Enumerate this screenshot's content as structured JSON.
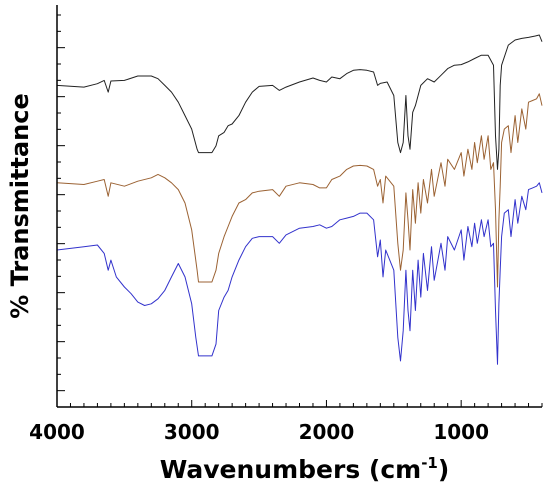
{
  "chart_data": {
    "type": "line",
    "title": "",
    "xlabel": "Wavenumbers (cm",
    "xlabel_sup": "-1",
    "xlabel_close": ")",
    "ylabel": "% Transmittance",
    "xlim": [
      4000,
      400
    ],
    "x_reversed": true,
    "x_ticks": [
      4000,
      3000,
      2000,
      1000
    ],
    "x_tick_labels": [
      "4000",
      "3000",
      "2000",
      "1000"
    ],
    "ylim": [
      0,
      100
    ],
    "y_tick_count": 24,
    "y_tick_labels_shown": false,
    "grid": false,
    "legend": "none",
    "series": [
      {
        "color": "#222222",
        "points": [
          [
            4000,
            85
          ],
          [
            3800,
            84.5
          ],
          [
            3700,
            85.5
          ],
          [
            3650,
            86.5
          ],
          [
            3620,
            83
          ],
          [
            3600,
            86.3
          ],
          [
            3500,
            86.5
          ],
          [
            3400,
            87.8
          ],
          [
            3300,
            87.8
          ],
          [
            3250,
            87
          ],
          [
            3200,
            85
          ],
          [
            3150,
            83
          ],
          [
            3100,
            80
          ],
          [
            3050,
            76
          ],
          [
            3000,
            72
          ],
          [
            2960,
            66
          ],
          [
            2950,
            65
          ],
          [
            2900,
            65
          ],
          [
            2850,
            65
          ],
          [
            2820,
            67
          ],
          [
            2800,
            70
          ],
          [
            2760,
            71
          ],
          [
            2730,
            73
          ],
          [
            2700,
            73.5
          ],
          [
            2650,
            76
          ],
          [
            2600,
            80
          ],
          [
            2550,
            83
          ],
          [
            2500,
            84.7
          ],
          [
            2400,
            85
          ],
          [
            2350,
            83.5
          ],
          [
            2300,
            84.5
          ],
          [
            2200,
            86
          ],
          [
            2100,
            87.2
          ],
          [
            2050,
            86.5
          ],
          [
            2000,
            86
          ],
          [
            1960,
            87.5
          ],
          [
            1900,
            87
          ],
          [
            1850,
            88.5
          ],
          [
            1800,
            89.5
          ],
          [
            1750,
            89.7
          ],
          [
            1700,
            89.5
          ],
          [
            1650,
            89
          ],
          [
            1620,
            85
          ],
          [
            1600,
            85.6
          ],
          [
            1550,
            86
          ],
          [
            1500,
            82
          ],
          [
            1470,
            68
          ],
          [
            1450,
            65
          ],
          [
            1430,
            68
          ],
          [
            1410,
            82
          ],
          [
            1395,
            70
          ],
          [
            1380,
            66
          ],
          [
            1360,
            77
          ],
          [
            1340,
            79
          ],
          [
            1300,
            85
          ],
          [
            1250,
            87
          ],
          [
            1200,
            86
          ],
          [
            1150,
            88
          ],
          [
            1100,
            90
          ],
          [
            1050,
            91
          ],
          [
            1000,
            91.2
          ],
          [
            950,
            92
          ],
          [
            900,
            93
          ],
          [
            850,
            94
          ],
          [
            800,
            94
          ],
          [
            760,
            91
          ],
          [
            745,
            70
          ],
          [
            730,
            60
          ],
          [
            720,
            66
          ],
          [
            710,
            85
          ],
          [
            700,
            91
          ],
          [
            650,
            97
          ],
          [
            600,
            98.5
          ],
          [
            550,
            99
          ],
          [
            500,
            99.3
          ],
          [
            450,
            99.7
          ],
          [
            420,
            100
          ],
          [
            400,
            98
          ]
        ]
      },
      {
        "color": "#9b6233",
        "points": [
          [
            4000,
            56
          ],
          [
            3800,
            55.5
          ],
          [
            3700,
            56.5
          ],
          [
            3650,
            57
          ],
          [
            3620,
            52
          ],
          [
            3600,
            56
          ],
          [
            3500,
            55
          ],
          [
            3400,
            56.5
          ],
          [
            3300,
            57.5
          ],
          [
            3250,
            58.5
          ],
          [
            3200,
            57.5
          ],
          [
            3150,
            56
          ],
          [
            3100,
            54
          ],
          [
            3050,
            50
          ],
          [
            3000,
            42
          ],
          [
            2960,
            30
          ],
          [
            2950,
            26.5
          ],
          [
            2900,
            26.5
          ],
          [
            2850,
            26.5
          ],
          [
            2820,
            30
          ],
          [
            2800,
            35
          ],
          [
            2760,
            40
          ],
          [
            2730,
            43
          ],
          [
            2700,
            46
          ],
          [
            2650,
            50
          ],
          [
            2600,
            51
          ],
          [
            2550,
            53
          ],
          [
            2500,
            53.5
          ],
          [
            2400,
            54
          ],
          [
            2350,
            52
          ],
          [
            2300,
            55
          ],
          [
            2200,
            56
          ],
          [
            2100,
            55.5
          ],
          [
            2050,
            54.5
          ],
          [
            2000,
            54.5
          ],
          [
            1960,
            57
          ],
          [
            1900,
            58
          ],
          [
            1850,
            60
          ],
          [
            1800,
            61
          ],
          [
            1750,
            61.2
          ],
          [
            1700,
            61
          ],
          [
            1650,
            60
          ],
          [
            1620,
            55
          ],
          [
            1600,
            57
          ],
          [
            1580,
            50
          ],
          [
            1560,
            58
          ],
          [
            1500,
            55
          ],
          [
            1470,
            38
          ],
          [
            1450,
            30
          ],
          [
            1430,
            36
          ],
          [
            1410,
            53
          ],
          [
            1395,
            45
          ],
          [
            1380,
            36
          ],
          [
            1360,
            54
          ],
          [
            1340,
            44
          ],
          [
            1320,
            56
          ],
          [
            1300,
            47
          ],
          [
            1280,
            57
          ],
          [
            1250,
            50
          ],
          [
            1220,
            60
          ],
          [
            1200,
            52
          ],
          [
            1150,
            62
          ],
          [
            1120,
            55
          ],
          [
            1100,
            63
          ],
          [
            1050,
            60
          ],
          [
            1000,
            65
          ],
          [
            980,
            58
          ],
          [
            950,
            66
          ],
          [
            920,
            60
          ],
          [
            900,
            68
          ],
          [
            880,
            62
          ],
          [
            850,
            70
          ],
          [
            830,
            63
          ],
          [
            800,
            70
          ],
          [
            780,
            60
          ],
          [
            760,
            62
          ],
          [
            745,
            48
          ],
          [
            730,
            25
          ],
          [
            720,
            45
          ],
          [
            710,
            55
          ],
          [
            700,
            68
          ],
          [
            680,
            72
          ],
          [
            650,
            73
          ],
          [
            630,
            65
          ],
          [
            600,
            76
          ],
          [
            580,
            68
          ],
          [
            550,
            78
          ],
          [
            520,
            72
          ],
          [
            500,
            80
          ],
          [
            470,
            80.5
          ],
          [
            440,
            81
          ],
          [
            420,
            82.5
          ],
          [
            400,
            79
          ]
        ]
      },
      {
        "color": "#3232cc",
        "points": [
          [
            4000,
            36
          ],
          [
            3800,
            37
          ],
          [
            3700,
            37.5
          ],
          [
            3650,
            35
          ],
          [
            3620,
            30
          ],
          [
            3600,
            33
          ],
          [
            3560,
            28
          ],
          [
            3500,
            25
          ],
          [
            3450,
            23
          ],
          [
            3400,
            20.5
          ],
          [
            3350,
            19.5
          ],
          [
            3300,
            20
          ],
          [
            3250,
            21.5
          ],
          [
            3200,
            24
          ],
          [
            3150,
            28
          ],
          [
            3100,
            32
          ],
          [
            3050,
            28
          ],
          [
            3000,
            20
          ],
          [
            2970,
            10
          ],
          [
            2950,
            4.5
          ],
          [
            2900,
            4.5
          ],
          [
            2850,
            4.5
          ],
          [
            2820,
            8
          ],
          [
            2800,
            18
          ],
          [
            2760,
            22
          ],
          [
            2730,
            24
          ],
          [
            2700,
            28
          ],
          [
            2650,
            33
          ],
          [
            2600,
            37
          ],
          [
            2550,
            39.5
          ],
          [
            2500,
            40
          ],
          [
            2400,
            40
          ],
          [
            2350,
            38
          ],
          [
            2300,
            40.5
          ],
          [
            2200,
            42.5
          ],
          [
            2100,
            43
          ],
          [
            2050,
            43.5
          ],
          [
            2000,
            42.5
          ],
          [
            1960,
            43
          ],
          [
            1900,
            45
          ],
          [
            1850,
            45.5
          ],
          [
            1800,
            46
          ],
          [
            1750,
            47
          ],
          [
            1700,
            47
          ],
          [
            1650,
            45
          ],
          [
            1620,
            34
          ],
          [
            1600,
            39
          ],
          [
            1580,
            28
          ],
          [
            1560,
            36
          ],
          [
            1500,
            30
          ],
          [
            1470,
            10
          ],
          [
            1450,
            3
          ],
          [
            1430,
            12
          ],
          [
            1410,
            30
          ],
          [
            1395,
            18
          ],
          [
            1380,
            12
          ],
          [
            1360,
            30
          ],
          [
            1340,
            18
          ],
          [
            1320,
            33
          ],
          [
            1300,
            22
          ],
          [
            1280,
            35
          ],
          [
            1250,
            24
          ],
          [
            1220,
            37
          ],
          [
            1200,
            27
          ],
          [
            1150,
            38
          ],
          [
            1120,
            30
          ],
          [
            1100,
            40
          ],
          [
            1050,
            36
          ],
          [
            1000,
            42
          ],
          [
            980,
            33
          ],
          [
            950,
            43
          ],
          [
            920,
            37
          ],
          [
            900,
            44
          ],
          [
            880,
            38
          ],
          [
            850,
            45
          ],
          [
            830,
            40
          ],
          [
            800,
            45
          ],
          [
            780,
            37
          ],
          [
            760,
            38
          ],
          [
            745,
            18
          ],
          [
            730,
            2
          ],
          [
            720,
            20
          ],
          [
            710,
            30
          ],
          [
            700,
            40
          ],
          [
            680,
            47
          ],
          [
            650,
            48
          ],
          [
            630,
            40
          ],
          [
            600,
            51
          ],
          [
            580,
            44
          ],
          [
            550,
            52
          ],
          [
            520,
            48
          ],
          [
            500,
            54
          ],
          [
            470,
            54.5
          ],
          [
            440,
            55
          ],
          [
            420,
            56
          ],
          [
            400,
            53
          ]
        ]
      }
    ]
  }
}
